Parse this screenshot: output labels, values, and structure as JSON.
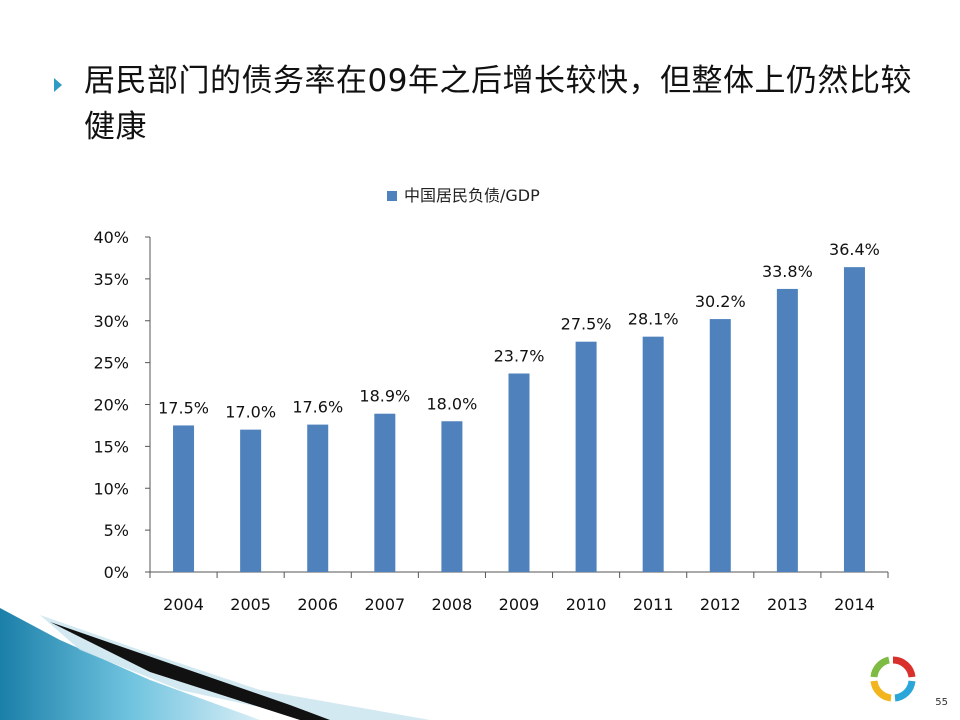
{
  "slide": {
    "title": "居民部门的债务率在09年之后增长较快，但整体上仍然比较健康",
    "page_number": "55",
    "bullet_icon": "triangle-right-icon",
    "accent_color": "#2e9bc4"
  },
  "chart_data": {
    "type": "bar",
    "categories": [
      "2004",
      "2005",
      "2006",
      "2007",
      "2008",
      "2009",
      "2010",
      "2011",
      "2012",
      "2013",
      "2014"
    ],
    "series": [
      {
        "name": "中国居民负债/GDP",
        "values": [
          17.5,
          17.0,
          17.6,
          18.9,
          18.0,
          23.7,
          27.5,
          28.1,
          30.2,
          33.8,
          36.4
        ],
        "color": "#4f81bd"
      }
    ],
    "data_labels": [
      "17.5%",
      "17.0%",
      "17.6%",
      "18.9%",
      "18.0%",
      "23.7%",
      "27.5%",
      "28.1%",
      "30.2%",
      "33.8%",
      "36.4%"
    ],
    "y_ticks": [
      "0%",
      "5%",
      "10%",
      "15%",
      "20%",
      "25%",
      "30%",
      "35%",
      "40%"
    ],
    "ylim": [
      0,
      40
    ],
    "grid": false,
    "legend_position": "top-center"
  }
}
